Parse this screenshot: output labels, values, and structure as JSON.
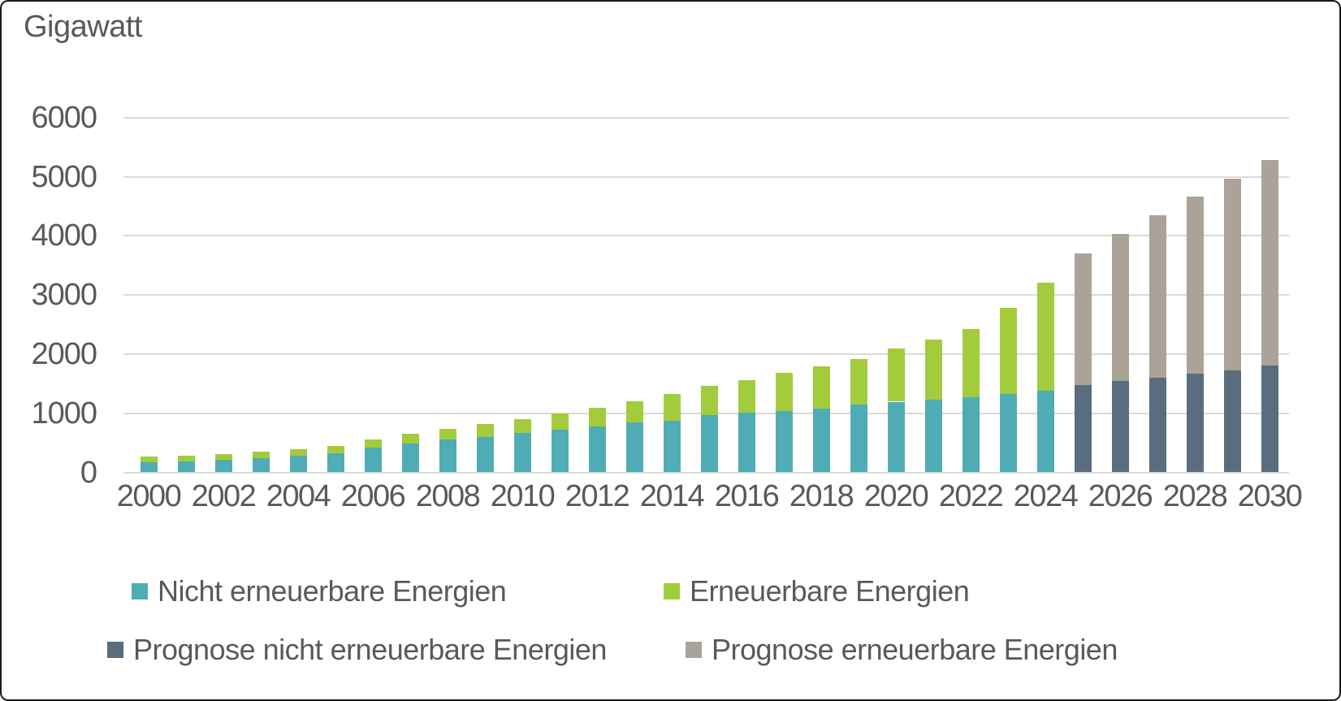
{
  "chart_data": {
    "type": "bar",
    "stacked": true,
    "title": "Gigawatt",
    "ylabel": "Gigawatt",
    "grid": true,
    "legend_position": "bottom",
    "gridline_color": "#D9D9D9",
    "text_color": "#595959",
    "ylim": [
      0,
      6000
    ],
    "yticks": [
      0,
      1000,
      2000,
      3000,
      4000,
      5000,
      6000
    ],
    "years": [
      2000,
      2001,
      2002,
      2003,
      2004,
      2005,
      2006,
      2007,
      2008,
      2009,
      2010,
      2011,
      2012,
      2013,
      2014,
      2015,
      2016,
      2017,
      2018,
      2019,
      2020,
      2021,
      2022,
      2023,
      2024,
      2025,
      2026,
      2027,
      2028,
      2029,
      2030
    ],
    "xtick_labels": [
      "2000",
      "2002",
      "2004",
      "2006",
      "2008",
      "2010",
      "2012",
      "2014",
      "2016",
      "2018",
      "2020",
      "2022",
      "2024",
      "2026",
      "2028",
      "2030"
    ],
    "series": [
      {
        "name": "Nicht erneuerbare Energien",
        "color": "#4FACB4",
        "values": [
          175,
          190,
          210,
          245,
          275,
          320,
          415,
          490,
          550,
          600,
          670,
          720,
          780,
          840,
          870,
          965,
          1005,
          1040,
          1080,
          1145,
          1195,
          1230,
          1270,
          1330,
          1375,
          null,
          null,
          null,
          null,
          null,
          null
        ]
      },
      {
        "name": "Erneuerbare Energien",
        "color": "#A3CC3C",
        "values": [
          90,
          95,
          105,
          105,
          110,
          125,
          145,
          165,
          185,
          215,
          235,
          270,
          315,
          365,
          450,
          495,
          550,
          640,
          710,
          770,
          905,
          1010,
          1150,
          1450,
          1830,
          null,
          null,
          null,
          null,
          null,
          null
        ]
      },
      {
        "name": "Prognose nicht erneuerbare Energien",
        "color": "#596D7E",
        "values": [
          null,
          null,
          null,
          null,
          null,
          null,
          null,
          null,
          null,
          null,
          null,
          null,
          null,
          null,
          null,
          null,
          null,
          null,
          null,
          null,
          null,
          null,
          null,
          null,
          null,
          1480,
          1540,
          1600,
          1670,
          1730,
          1800
        ]
      },
      {
        "name": "Prognose erneuerbare Energien",
        "color": "#ABA397",
        "values": [
          null,
          null,
          null,
          null,
          null,
          null,
          null,
          null,
          null,
          null,
          null,
          null,
          null,
          null,
          null,
          null,
          null,
          null,
          null,
          null,
          null,
          null,
          null,
          null,
          null,
          2225,
          2495,
          2745,
          2995,
          3240,
          3480
        ]
      }
    ]
  }
}
